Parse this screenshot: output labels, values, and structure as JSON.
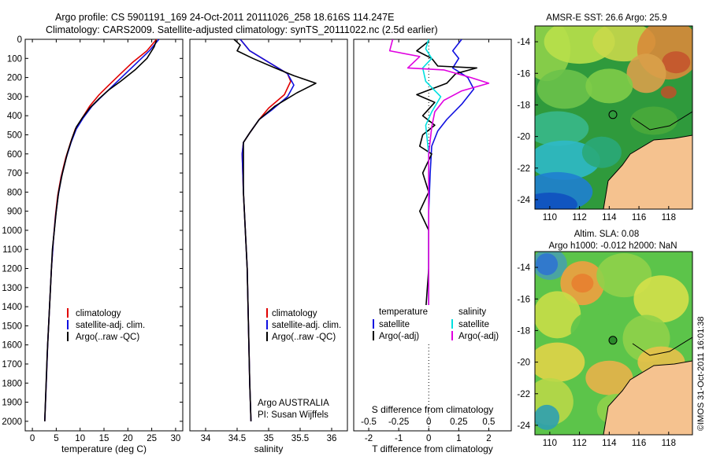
{
  "header": {
    "line1": "Argo profile: CS 5901191_169 24-Oct-2011 20111026_258 18.616S 114.247E",
    "line2": "Climatology: CARS2009. Satellite-adjusted climatology: synTS_20111022.nc (2.5d earlier)"
  },
  "colors": {
    "climatology": "#e00000",
    "satellite": "#1010e0",
    "argo": "#000000",
    "sat_salinity": "#00e0e0",
    "argo_salinity": "#e000e0",
    "land": "#f5c28f",
    "coast": "#000000"
  },
  "chart_data": [
    {
      "type": "line",
      "id": "temperature",
      "xlabel": "temperature (deg C)",
      "xlim": [
        -1.5,
        31.5
      ],
      "xticks": [
        0,
        5,
        10,
        15,
        20,
        25,
        30
      ],
      "ylim": [
        0,
        2050
      ],
      "yticks": [
        0,
        100,
        200,
        300,
        400,
        500,
        600,
        700,
        800,
        900,
        1000,
        1100,
        1200,
        1300,
        1400,
        1500,
        1600,
        1700,
        1800,
        1900,
        2000
      ],
      "legend": [
        "climatology",
        "satellite-adj. clim.",
        "Argo(..raw -QC)"
      ],
      "series": [
        {
          "name": "climatology",
          "color_key": "climatology",
          "points": [
            [
              26,
              0
            ],
            [
              24,
              60
            ],
            [
              21,
              120
            ],
            [
              18.5,
              180
            ],
            [
              16,
              240
            ],
            [
              14,
              290
            ],
            [
              12,
              350
            ],
            [
              10.5,
              410
            ],
            [
              9,
              470
            ],
            [
              8,
              540
            ],
            [
              7,
              620
            ],
            [
              6,
              720
            ],
            [
              5.3,
              820
            ],
            [
              4.8,
              930
            ],
            [
              4.4,
              1050
            ],
            [
              4,
              1200
            ],
            [
              3.6,
              1400
            ],
            [
              3.2,
              1600
            ],
            [
              2.9,
              1800
            ],
            [
              2.6,
              2000
            ]
          ]
        },
        {
          "name": "satellite-adj. clim.",
          "color_key": "satellite",
          "points": [
            [
              26.5,
              0
            ],
            [
              24.5,
              60
            ],
            [
              22,
              120
            ],
            [
              19.5,
              180
            ],
            [
              17,
              240
            ],
            [
              14.5,
              300
            ],
            [
              12.5,
              350
            ],
            [
              10.7,
              410
            ],
            [
              9.2,
              470
            ],
            [
              8.1,
              540
            ],
            [
              7.1,
              620
            ],
            [
              6.1,
              720
            ],
            [
              5.4,
              820
            ],
            [
              4.85,
              930
            ],
            [
              4.4,
              1050
            ],
            [
              4,
              1200
            ],
            [
              3.6,
              1400
            ],
            [
              3.2,
              1600
            ],
            [
              2.9,
              1800
            ],
            [
              2.6,
              2000
            ]
          ]
        },
        {
          "name": "Argo(..raw -QC)",
          "color_key": "argo",
          "points": [
            [
              26,
              5
            ],
            [
              25.5,
              40
            ],
            [
              24,
              100
            ],
            [
              21.5,
              160
            ],
            [
              18.5,
              220
            ],
            [
              16,
              265
            ],
            [
              14,
              310
            ],
            [
              12,
              360
            ],
            [
              10.5,
              410
            ],
            [
              9.2,
              460
            ],
            [
              8.3,
              520
            ],
            [
              7.3,
              600
            ],
            [
              6.3,
              700
            ],
            [
              5.5,
              800
            ],
            [
              5,
              900
            ],
            [
              4.6,
              1000
            ],
            [
              4.2,
              1100
            ],
            [
              3.9,
              1250
            ],
            [
              3.5,
              1450
            ],
            [
              3.1,
              1650
            ],
            [
              2.8,
              1850
            ],
            [
              2.6,
              2000
            ]
          ]
        }
      ]
    },
    {
      "type": "line",
      "id": "salinity",
      "xlabel": "salinity",
      "xlim": [
        33.75,
        36.25
      ],
      "xticks": [
        34,
        34.5,
        35,
        35.5,
        36
      ],
      "ylim": [
        0,
        2050
      ],
      "legend": [
        "climatology",
        "satellite-adj. clim.",
        "Argo(..raw -QC)"
      ],
      "annotation": [
        "Argo AUSTRALIA",
        "PI: Susan Wijffels"
      ],
      "series": [
        {
          "name": "climatology",
          "color_key": "climatology",
          "points": [
            [
              34.55,
              0
            ],
            [
              34.7,
              60
            ],
            [
              35.0,
              120
            ],
            [
              35.3,
              180
            ],
            [
              35.35,
              220
            ],
            [
              35.25,
              290
            ],
            [
              35.0,
              360
            ],
            [
              34.85,
              420
            ],
            [
              34.7,
              490
            ],
            [
              34.6,
              540
            ],
            [
              34.58,
              600
            ],
            [
              34.6,
              800
            ],
            [
              34.63,
              1000
            ],
            [
              34.66,
              1200
            ],
            [
              34.68,
              1500
            ],
            [
              34.7,
              1800
            ],
            [
              34.72,
              2000
            ]
          ]
        },
        {
          "name": "satellite-adj. clim.",
          "color_key": "satellite",
          "points": [
            [
              34.55,
              0
            ],
            [
              34.7,
              60
            ],
            [
              35.0,
              120
            ],
            [
              35.3,
              180
            ],
            [
              35.4,
              240
            ],
            [
              35.3,
              300
            ],
            [
              35.05,
              370
            ],
            [
              34.85,
              420
            ],
            [
              34.7,
              490
            ],
            [
              34.6,
              540
            ],
            [
              34.58,
              600
            ],
            [
              34.6,
              800
            ],
            [
              34.63,
              1000
            ],
            [
              34.66,
              1200
            ],
            [
              34.68,
              1500
            ],
            [
              34.7,
              1800
            ],
            [
              34.72,
              2000
            ]
          ]
        },
        {
          "name": "Argo(..raw -QC)",
          "color_key": "argo",
          "points": [
            [
              34.45,
              0
            ],
            [
              34.55,
              30
            ],
            [
              34.5,
              60
            ],
            [
              34.75,
              100
            ],
            [
              35.1,
              150
            ],
            [
              35.4,
              190
            ],
            [
              35.75,
              230
            ],
            [
              35.45,
              280
            ],
            [
              35.1,
              350
            ],
            [
              34.85,
              420
            ],
            [
              34.7,
              490
            ],
            [
              34.6,
              540
            ],
            [
              34.6,
              600
            ],
            [
              34.6,
              800
            ],
            [
              34.63,
              1000
            ],
            [
              34.66,
              1200
            ],
            [
              34.68,
              1500
            ],
            [
              34.7,
              1800
            ],
            [
              34.72,
              2000
            ]
          ]
        }
      ]
    },
    {
      "type": "line",
      "id": "difference",
      "xlabel": "T difference from climatology",
      "xlabel_top": "S difference from climatology",
      "xlim": [
        -2.5,
        2.75
      ],
      "xticks": [
        -2,
        -1,
        0,
        1,
        2
      ],
      "s_ticks": [
        "-0.5",
        "-0.25",
        "0",
        "0.25",
        "0.5"
      ],
      "legend_temperature": {
        "title": "temperature",
        "items": [
          "satellite",
          "Argo(-adj)"
        ]
      },
      "legend_salinity": {
        "title": "salinity",
        "items": [
          "satellite",
          "Argo(-adj)"
        ]
      },
      "series": [
        {
          "name": "temperature satellite",
          "color_key": "satellite",
          "points": [
            [
              1.1,
              0
            ],
            [
              0.8,
              60
            ],
            [
              1.0,
              100
            ],
            [
              0.8,
              150
            ],
            [
              1.3,
              200
            ],
            [
              1.5,
              260
            ],
            [
              1.1,
              340
            ],
            [
              0.6,
              420
            ],
            [
              0.3,
              480
            ],
            [
              0.1,
              560
            ],
            [
              0.05,
              700
            ],
            [
              0,
              900
            ],
            [
              0,
              1200
            ],
            [
              0,
              1420
            ]
          ]
        },
        {
          "name": "temperature Argo(-adj)",
          "color_key": "argo",
          "points": [
            [
              0,
              10
            ],
            [
              -0.4,
              60
            ],
            [
              0.1,
              100
            ],
            [
              0.3,
              140
            ],
            [
              1.6,
              150
            ],
            [
              0.9,
              180
            ],
            [
              0.6,
              230
            ],
            [
              -0.4,
              290
            ],
            [
              0.2,
              330
            ],
            [
              -0.2,
              400
            ],
            [
              0.2,
              450
            ],
            [
              -0.2,
              500
            ],
            [
              -0.3,
              560
            ],
            [
              0.1,
              600
            ],
            [
              -0.2,
              700
            ],
            [
              0,
              800
            ],
            [
              -0.3,
              900
            ],
            [
              0,
              1000
            ],
            [
              0,
              1200
            ],
            [
              -0.1,
              1420
            ]
          ]
        },
        {
          "name": "salinity satellite",
          "color_key": "sat_salinity",
          "points": [
            [
              0,
              0
            ],
            [
              -0.1,
              50
            ],
            [
              0.1,
              100
            ],
            [
              -0.2,
              150
            ],
            [
              -0.1,
              220
            ],
            [
              0.4,
              300
            ],
            [
              0.1,
              380
            ],
            [
              -0.1,
              450
            ],
            [
              0,
              600
            ],
            [
              0,
              900
            ],
            [
              0,
              1200
            ],
            [
              0,
              1420
            ]
          ]
        },
        {
          "name": "salinity Argo(-adj)",
          "color_key": "argo_salinity",
          "points": [
            [
              -1.2,
              0
            ],
            [
              -1.3,
              60
            ],
            [
              -0.3,
              90
            ],
            [
              -0.7,
              150
            ],
            [
              0.5,
              160
            ],
            [
              1.4,
              200
            ],
            [
              2.0,
              230
            ],
            [
              1.1,
              270
            ],
            [
              0.5,
              320
            ],
            [
              0.2,
              380
            ],
            [
              0.1,
              460
            ],
            [
              0,
              600
            ],
            [
              0,
              900
            ],
            [
              0,
              1200
            ],
            [
              0,
              1420
            ]
          ]
        }
      ]
    }
  ],
  "maps": [
    {
      "id": "sst",
      "title": "AMSR-E SST: 26.6 Argo: 25.9",
      "title2": "",
      "xticks": [
        "110",
        "112",
        "114",
        "116",
        "118"
      ],
      "yticks": [
        "-14",
        "-16",
        "-18",
        "-20",
        "-22",
        "-24"
      ]
    },
    {
      "id": "sla",
      "title": "Altim. SLA: 0.08",
      "title2": "Argo h1000: -0.012 h2000: NaN",
      "xticks": [
        "110",
        "112",
        "114",
        "116",
        "118"
      ],
      "yticks": [
        "-14",
        "-16",
        "-18",
        "-20",
        "-22",
        "-24"
      ]
    }
  ],
  "argo_position": {
    "lon": 114.247,
    "lat": -18.616
  },
  "imos_stamp": "©IMOS 31-Oct-2011 16:01:38"
}
